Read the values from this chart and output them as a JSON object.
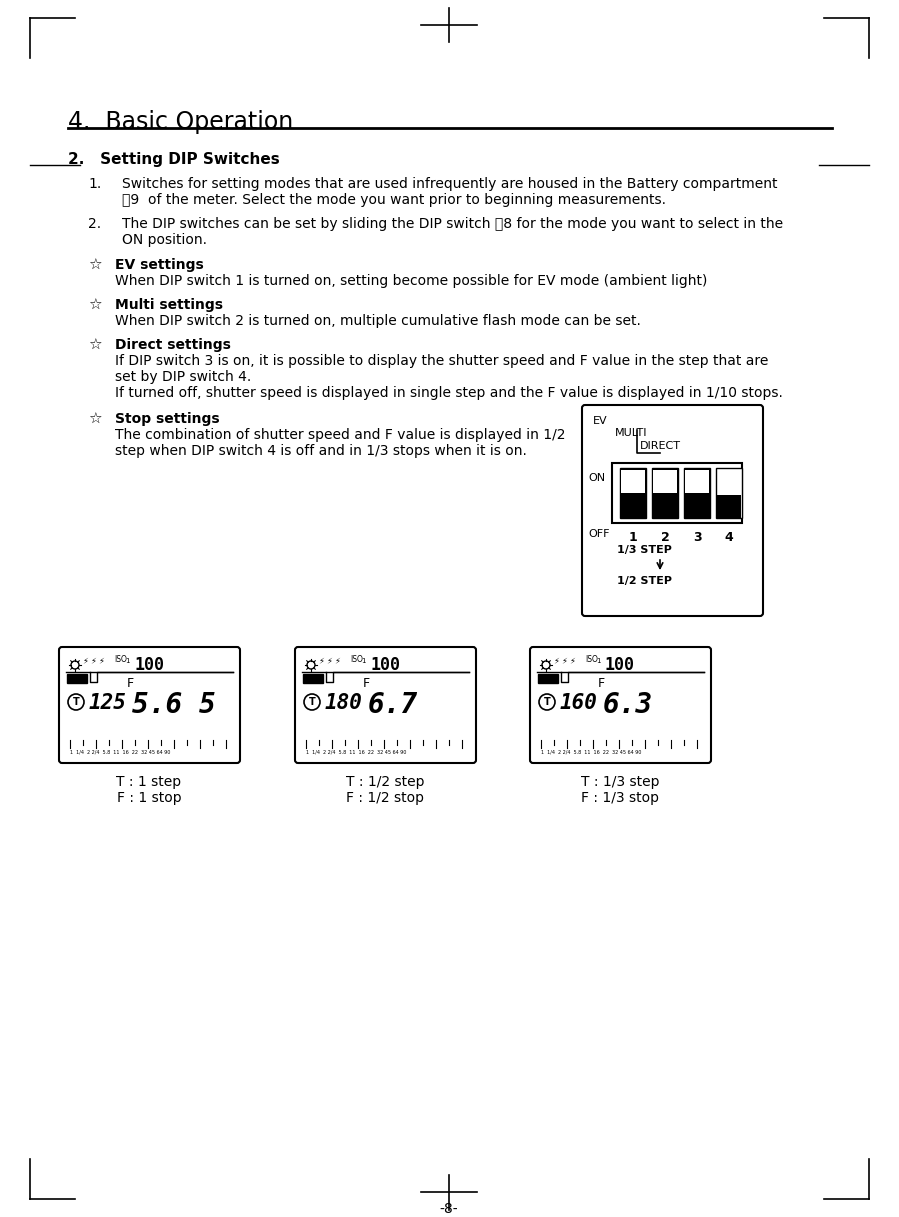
{
  "title": "4.  Basic Operation",
  "section_num": "2.",
  "section_title": "Setting DIP Switches",
  "p1_line1": "Switches for setting modes that are used infrequently are housed in the Battery compartment",
  "p1_line2": "\u00199  of the meter. Select the mode you want prior to beginning measurements.",
  "p2_line1": "The DIP switches can be set by sliding the DIP switch \u00188 for the mode you want to select in the",
  "p2_line2": "ON position.",
  "ev_title": "EV settings",
  "ev_text": "When DIP switch 1 is turned on, setting become possible for EV mode (ambient light)",
  "multi_title": "Multi settings",
  "multi_text": "When DIP switch 2 is turned on, multiple cumulative flash mode can be set.",
  "direct_title": "Direct settings",
  "direct_text1": "If DIP switch 3 is on, it is possible to display the shutter speed and F value in the step that are",
  "direct_text2": "set by DIP switch 4.",
  "direct_text3": "If turned off, shutter speed is displayed in single step and the F value is displayed in 1/10 stops.",
  "stop_title": "Stop settings",
  "stop_text1": "The combination of shutter speed and F value is displayed in 1/2",
  "stop_text2": "step when DIP switch 4 is off and in 1/3 stops when it is on.",
  "label1a": "T : 1 step",
  "label1b": "F : 1 stop",
  "label2a": "T : 1/2 step",
  "label2b": "F : 1/2 stop",
  "label3a": "T : 1/3 step",
  "label3b": "F : 1/3 stop",
  "lcd_shutter": [
    "125",
    "180",
    "160"
  ],
  "lcd_fval": [
    "5.6 5",
    "6.7",
    "6.3"
  ],
  "page_num": "-8-",
  "bg_color": "#ffffff",
  "text_color": "#000000"
}
